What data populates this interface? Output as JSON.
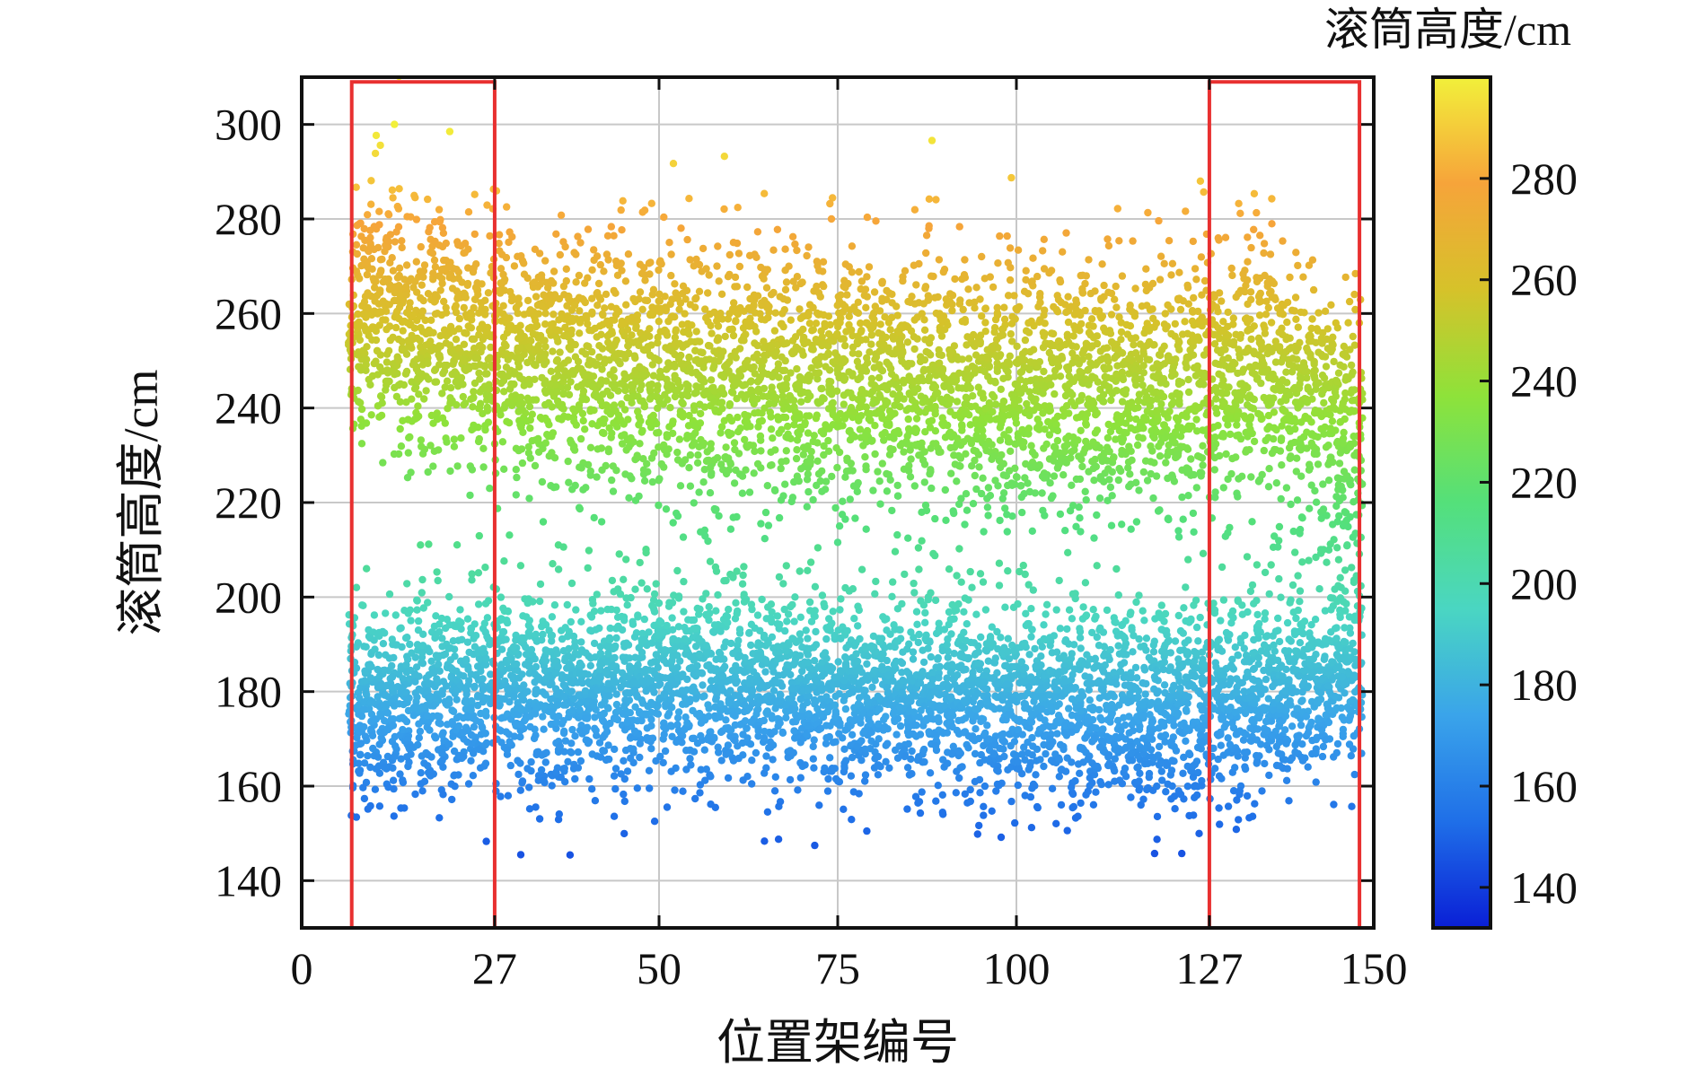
{
  "chart_data": {
    "type": "scatter",
    "xlabel": "位置架编号",
    "ylabel": "滚筒高度/cm",
    "xlim": [
      0,
      150
    ],
    "ylim": [
      130,
      310
    ],
    "xticks": [
      0,
      27,
      50,
      75,
      100,
      127,
      150
    ],
    "yticks": [
      140,
      160,
      180,
      200,
      220,
      240,
      260,
      280,
      300
    ],
    "grid": true,
    "colorbar": {
      "title": "滚筒高度/cm",
      "range": [
        132,
        300
      ],
      "ticks": [
        140,
        160,
        180,
        200,
        220,
        240,
        260,
        280
      ],
      "colormap": [
        "#0a1fd6",
        "#1f6fe8",
        "#3aa4ea",
        "#4ad6c2",
        "#54e07a",
        "#8ee23a",
        "#d6c22a",
        "#f6a43a",
        "#f2f03a"
      ]
    },
    "highlight_boxes": [
      {
        "x_range": [
          7,
          27
        ],
        "y_range": [
          130,
          309
        ],
        "color": "#e83030"
      },
      {
        "x_range": [
          127,
          148
        ],
        "y_range": [
          130,
          309
        ],
        "color": "#e83030"
      }
    ],
    "series": [
      {
        "description_points": "upper band",
        "x_range": [
          7,
          148
        ],
        "y_values_approx": [
          [
            7,
            258
          ],
          [
            10,
            262
          ],
          [
            15,
            258
          ],
          [
            20,
            255
          ],
          [
            27,
            250
          ],
          [
            50,
            248
          ],
          [
            75,
            246
          ],
          [
            100,
            244
          ],
          [
            127,
            245
          ],
          [
            135,
            248
          ],
          [
            145,
            235
          ]
        ],
        "spread": 18
      },
      {
        "description_points": "lower band",
        "x_range": [
          7,
          148
        ],
        "y_values_approx": [
          [
            7,
            178
          ],
          [
            15,
            178
          ],
          [
            27,
            180
          ],
          [
            50,
            182
          ],
          [
            75,
            180
          ],
          [
            100,
            178
          ],
          [
            127,
            176
          ],
          [
            135,
            180
          ],
          [
            145,
            185
          ]
        ],
        "spread": 14
      }
    ]
  }
}
